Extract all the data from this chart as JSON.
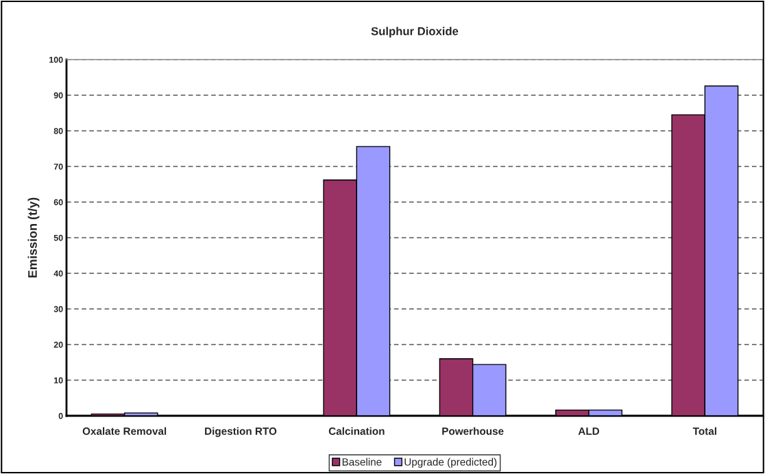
{
  "chart_data": {
    "type": "bar",
    "title": "Sulphur Dioxide",
    "ylabel": "Emission (t/y)",
    "categories": [
      "Oxalate Removal",
      "Digestion RTO",
      "Calcination",
      "Powerhouse",
      "ALD",
      "Total"
    ],
    "series": [
      {
        "name": "Baseline",
        "color": "#993366",
        "values": [
          0.5,
          0,
          66.2,
          16,
          1.6,
          84.5
        ]
      },
      {
        "name": "Upgrade (predicted)",
        "color": "#9999ff",
        "values": [
          0.8,
          0,
          75.6,
          14.4,
          1.6,
          92.6
        ]
      }
    ],
    "ylim": [
      0,
      100
    ],
    "yticks": [
      0,
      10,
      20,
      30,
      40,
      50,
      60,
      70,
      80,
      90,
      100
    ],
    "grid": "y",
    "legend": "bottom"
  }
}
